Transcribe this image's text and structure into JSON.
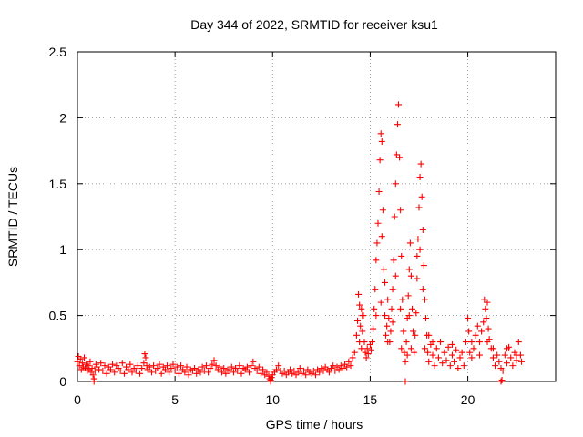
{
  "chart_data": {
    "type": "scatter",
    "title": "Day 344 of 2022, SRMTID for receiver ksu1",
    "xlabel": "GPS time / hours",
    "ylabel": "SRMTID / TECUs",
    "xlim": [
      0,
      24.5
    ],
    "ylim": [
      0,
      2.5
    ],
    "xticks": [
      0,
      5,
      10,
      15,
      20
    ],
    "yticks": [
      0,
      0.5,
      1,
      1.5,
      2,
      2.5
    ],
    "xtick_labels": [
      "0",
      "5",
      "10",
      "15",
      "20"
    ],
    "ytick_labels": [
      "0",
      "0.5",
      "1",
      "1.5",
      "2",
      "2.5"
    ],
    "grid": true,
    "marker": "+",
    "color": "#ff0000",
    "series": [
      {
        "name": "ksu1",
        "points": [
          [
            0.0,
            0.15
          ],
          [
            0.05,
            0.19
          ],
          [
            0.1,
            0.12
          ],
          [
            0.15,
            0.17
          ],
          [
            0.2,
            0.09
          ],
          [
            0.25,
            0.14
          ],
          [
            0.3,
            0.11
          ],
          [
            0.35,
            0.18
          ],
          [
            0.4,
            0.1
          ],
          [
            0.45,
            0.13
          ],
          [
            0.5,
            0.08
          ],
          [
            0.55,
            0.12
          ],
          [
            0.6,
            0.09
          ],
          [
            0.65,
            0.15
          ],
          [
            0.7,
            0.07
          ],
          [
            0.75,
            0.1
          ],
          [
            0.8,
            0.05
          ],
          [
            0.85,
            0.02
          ],
          [
            0.9,
            0.08
          ],
          [
            0.95,
            0.13
          ],
          [
            1.0,
            0.11
          ],
          [
            1.1,
            0.09
          ],
          [
            1.2,
            0.14
          ],
          [
            1.3,
            0.08
          ],
          [
            1.4,
            0.12
          ],
          [
            1.5,
            0.06
          ],
          [
            1.6,
            0.11
          ],
          [
            1.7,
            0.09
          ],
          [
            1.8,
            0.13
          ],
          [
            1.9,
            0.07
          ],
          [
            2.0,
            0.12
          ],
          [
            2.1,
            0.1
          ],
          [
            2.2,
            0.08
          ],
          [
            2.3,
            0.14
          ],
          [
            2.4,
            0.06
          ],
          [
            2.5,
            0.11
          ],
          [
            2.6,
            0.09
          ],
          [
            2.7,
            0.13
          ],
          [
            2.8,
            0.07
          ],
          [
            2.9,
            0.1
          ],
          [
            3.0,
            0.08
          ],
          [
            3.1,
            0.12
          ],
          [
            3.2,
            0.06
          ],
          [
            3.3,
            0.1
          ],
          [
            3.4,
            0.14
          ],
          [
            3.45,
            0.21
          ],
          [
            3.5,
            0.18
          ],
          [
            3.55,
            0.12
          ],
          [
            3.6,
            0.09
          ],
          [
            3.7,
            0.11
          ],
          [
            3.8,
            0.07
          ],
          [
            3.9,
            0.12
          ],
          [
            4.0,
            0.08
          ],
          [
            4.1,
            0.1
          ],
          [
            4.2,
            0.13
          ],
          [
            4.3,
            0.06
          ],
          [
            4.4,
            0.11
          ],
          [
            4.5,
            0.09
          ],
          [
            4.6,
            0.12
          ],
          [
            4.7,
            0.07
          ],
          [
            4.8,
            0.1
          ],
          [
            4.9,
            0.13
          ],
          [
            5.0,
            0.08
          ],
          [
            5.1,
            0.11
          ],
          [
            5.2,
            0.06
          ],
          [
            5.3,
            0.12
          ],
          [
            5.4,
            0.09
          ],
          [
            5.5,
            0.07
          ],
          [
            5.6,
            0.11
          ],
          [
            5.7,
            0.05
          ],
          [
            5.8,
            0.09
          ],
          [
            5.9,
            0.08
          ],
          [
            6.0,
            0.1
          ],
          [
            6.1,
            0.06
          ],
          [
            6.2,
            0.09
          ],
          [
            6.3,
            0.07
          ],
          [
            6.4,
            0.11
          ],
          [
            6.5,
            0.08
          ],
          [
            6.6,
            0.12
          ],
          [
            6.7,
            0.07
          ],
          [
            6.8,
            0.1
          ],
          [
            6.9,
            0.13
          ],
          [
            7.0,
            0.16
          ],
          [
            7.1,
            0.12
          ],
          [
            7.2,
            0.09
          ],
          [
            7.3,
            0.11
          ],
          [
            7.4,
            0.07
          ],
          [
            7.5,
            0.1
          ],
          [
            7.6,
            0.06
          ],
          [
            7.7,
            0.09
          ],
          [
            7.8,
            0.08
          ],
          [
            7.9,
            0.11
          ],
          [
            8.0,
            0.07
          ],
          [
            8.1,
            0.1
          ],
          [
            8.2,
            0.08
          ],
          [
            8.3,
            0.12
          ],
          [
            8.4,
            0.06
          ],
          [
            8.5,
            0.1
          ],
          [
            8.6,
            0.09
          ],
          [
            8.7,
            0.11
          ],
          [
            8.8,
            0.07
          ],
          [
            8.9,
            0.12
          ],
          [
            9.0,
            0.15
          ],
          [
            9.1,
            0.1
          ],
          [
            9.2,
            0.08
          ],
          [
            9.3,
            0.11
          ],
          [
            9.4,
            0.06
          ],
          [
            9.5,
            0.09
          ],
          [
            9.6,
            0.05
          ],
          [
            9.7,
            0.07
          ],
          [
            9.8,
            0.04
          ],
          [
            9.85,
            0.02
          ],
          [
            9.9,
            0.01
          ],
          [
            9.95,
            0.03
          ],
          [
            10.0,
            0.05
          ],
          [
            10.1,
            0.07
          ],
          [
            10.2,
            0.09
          ],
          [
            10.3,
            0.12
          ],
          [
            10.4,
            0.08
          ],
          [
            10.5,
            0.06
          ],
          [
            10.6,
            0.08
          ],
          [
            10.7,
            0.05
          ],
          [
            10.8,
            0.07
          ],
          [
            10.9,
            0.09
          ],
          [
            11.0,
            0.06
          ],
          [
            11.1,
            0.08
          ],
          [
            11.2,
            0.05
          ],
          [
            11.3,
            0.07
          ],
          [
            11.4,
            0.1
          ],
          [
            11.5,
            0.06
          ],
          [
            11.6,
            0.08
          ],
          [
            11.7,
            0.05
          ],
          [
            11.8,
            0.09
          ],
          [
            11.9,
            0.07
          ],
          [
            12.0,
            0.06
          ],
          [
            12.1,
            0.08
          ],
          [
            12.2,
            0.05
          ],
          [
            12.3,
            0.09
          ],
          [
            12.4,
            0.07
          ],
          [
            12.5,
            0.1
          ],
          [
            12.6,
            0.08
          ],
          [
            12.7,
            0.11
          ],
          [
            12.8,
            0.09
          ],
          [
            12.9,
            0.07
          ],
          [
            13.0,
            0.1
          ],
          [
            13.1,
            0.12
          ],
          [
            13.2,
            0.08
          ],
          [
            13.3,
            0.11
          ],
          [
            13.4,
            0.09
          ],
          [
            13.5,
            0.12
          ],
          [
            13.6,
            0.1
          ],
          [
            13.7,
            0.13
          ],
          [
            13.8,
            0.11
          ],
          [
            13.9,
            0.15
          ],
          [
            14.0,
            0.12
          ],
          [
            14.1,
            0.18
          ],
          [
            14.2,
            0.22
          ],
          [
            14.3,
            0.35
          ],
          [
            14.35,
            0.46
          ],
          [
            14.4,
            0.66
          ],
          [
            14.45,
            0.58
          ],
          [
            14.5,
            0.42
          ],
          [
            14.55,
            0.55
          ],
          [
            14.6,
            0.38
          ],
          [
            14.65,
            0.5
          ],
          [
            14.7,
            0.3
          ],
          [
            14.75,
            0.22
          ],
          [
            14.8,
            0.18
          ],
          [
            14.85,
            0.25
          ],
          [
            14.9,
            0.21
          ],
          [
            15.0,
            0.28
          ],
          [
            15.05,
            0.24
          ],
          [
            15.1,
            0.3
          ],
          [
            15.15,
            0.4
          ],
          [
            15.2,
            0.55
          ],
          [
            15.25,
            0.7
          ],
          [
            15.3,
            0.92
          ],
          [
            15.35,
            1.05
          ],
          [
            15.4,
            1.2
          ],
          [
            15.45,
            1.44
          ],
          [
            15.5,
            1.68
          ],
          [
            15.55,
            1.88
          ],
          [
            15.6,
            1.82
          ],
          [
            15.65,
            1.3
          ],
          [
            15.7,
            0.85
          ],
          [
            15.75,
            0.5
          ],
          [
            15.8,
            0.35
          ],
          [
            15.85,
            0.42
          ],
          [
            15.9,
            0.62
          ],
          [
            15.95,
            0.48
          ],
          [
            16.0,
            0.3
          ],
          [
            16.05,
            0.38
          ],
          [
            16.1,
            0.55
          ],
          [
            16.15,
            0.7
          ],
          [
            16.2,
            0.92
          ],
          [
            16.25,
            1.25
          ],
          [
            16.3,
            1.5
          ],
          [
            16.35,
            1.72
          ],
          [
            16.4,
            1.95
          ],
          [
            16.45,
            2.1
          ],
          [
            16.5,
            1.7
          ],
          [
            16.55,
            1.3
          ],
          [
            16.6,
            0.95
          ],
          [
            16.65,
            0.62
          ],
          [
            16.7,
            0.38
          ],
          [
            16.75,
            0.22
          ],
          [
            16.8,
            0.15
          ],
          [
            16.85,
            0.3
          ],
          [
            16.9,
            0.48
          ],
          [
            16.95,
            0.65
          ],
          [
            17.0,
            0.85
          ],
          [
            17.05,
            1.05
          ],
          [
            17.1,
            0.8
          ],
          [
            17.15,
            0.55
          ],
          [
            17.2,
            0.38
          ],
          [
            17.25,
            0.22
          ],
          [
            17.3,
            0.35
          ],
          [
            17.35,
            0.52
          ],
          [
            17.4,
            0.78
          ],
          [
            17.45,
            1.08
          ],
          [
            17.5,
            1.32
          ],
          [
            17.55,
            1.55
          ],
          [
            17.6,
            1.65
          ],
          [
            17.65,
            1.4
          ],
          [
            17.7,
            1.15
          ],
          [
            17.75,
            0.88
          ],
          [
            17.8,
            0.62
          ],
          [
            17.85,
            0.48
          ],
          [
            17.9,
            0.35
          ],
          [
            17.95,
            0.22
          ],
          [
            18.0,
            0.15
          ],
          [
            18.1,
            0.28
          ],
          [
            18.2,
            0.2
          ],
          [
            18.3,
            0.12
          ],
          [
            18.4,
            0.25
          ],
          [
            18.5,
            0.18
          ],
          [
            18.6,
            0.3
          ],
          [
            18.7,
            0.14
          ],
          [
            18.8,
            0.22
          ],
          [
            18.9,
            0.16
          ],
          [
            19.0,
            0.26
          ],
          [
            19.1,
            0.12
          ],
          [
            19.2,
            0.2
          ],
          [
            19.3,
            0.15
          ],
          [
            19.4,
            0.24
          ],
          [
            19.5,
            0.1
          ],
          [
            19.6,
            0.18
          ],
          [
            19.7,
            0.22
          ],
          [
            19.8,
            0.12
          ],
          [
            19.9,
            0.3
          ],
          [
            20.0,
            0.48
          ],
          [
            20.05,
            0.38
          ],
          [
            20.1,
            0.22
          ],
          [
            20.2,
            0.18
          ],
          [
            20.3,
            0.25
          ],
          [
            20.4,
            0.35
          ],
          [
            20.5,
            0.42
          ],
          [
            20.6,
            0.3
          ],
          [
            20.7,
            0.38
          ],
          [
            20.8,
            0.45
          ],
          [
            20.85,
            0.62
          ],
          [
            20.9,
            0.55
          ],
          [
            20.95,
            0.48
          ],
          [
            21.0,
            0.6
          ],
          [
            21.05,
            0.4
          ],
          [
            21.1,
            0.32
          ],
          [
            21.2,
            0.25
          ],
          [
            21.3,
            0.18
          ],
          [
            21.4,
            0.12
          ],
          [
            21.5,
            0.2
          ],
          [
            21.6,
            0.15
          ],
          [
            21.7,
            0.1
          ],
          [
            21.75,
            0.01
          ],
          [
            21.8,
            0.08
          ],
          [
            21.9,
            0.2
          ],
          [
            22.0,
            0.14
          ],
          [
            22.1,
            0.26
          ],
          [
            22.2,
            0.18
          ],
          [
            22.3,
            0.12
          ],
          [
            22.4,
            0.22
          ],
          [
            22.5,
            0.16
          ],
          [
            22.6,
            0.3
          ],
          [
            22.7,
            0.2
          ],
          [
            22.75,
            0.15
          ],
          [
            16.8,
            0.0
          ],
          [
            21.7,
            0.0
          ],
          [
            9.9,
            0.0
          ],
          [
            0.85,
            0.0
          ],
          [
            15.55,
            0.6
          ],
          [
            15.6,
            1.1
          ],
          [
            15.75,
            0.75
          ],
          [
            16.15,
            0.45
          ],
          [
            16.3,
            0.8
          ],
          [
            16.55,
            0.55
          ],
          [
            17.0,
            0.5
          ],
          [
            17.4,
            0.95
          ],
          [
            17.55,
            1.0
          ],
          [
            17.7,
            0.7
          ],
          [
            15.3,
            0.5
          ],
          [
            16.6,
            0.25
          ],
          [
            14.45,
            0.3
          ],
          [
            14.55,
            0.25
          ],
          [
            14.6,
            0.5
          ],
          [
            15.9,
            0.3
          ],
          [
            16.9,
            0.2
          ],
          [
            17.1,
            0.25
          ],
          [
            17.8,
            0.25
          ],
          [
            18.0,
            0.35
          ],
          [
            18.2,
            0.3
          ],
          [
            19.2,
            0.28
          ],
          [
            20.2,
            0.3
          ],
          [
            20.6,
            0.2
          ],
          [
            21.0,
            0.3
          ],
          [
            21.3,
            0.25
          ],
          [
            22.0,
            0.25
          ],
          [
            22.5,
            0.2
          ]
        ]
      }
    ]
  }
}
